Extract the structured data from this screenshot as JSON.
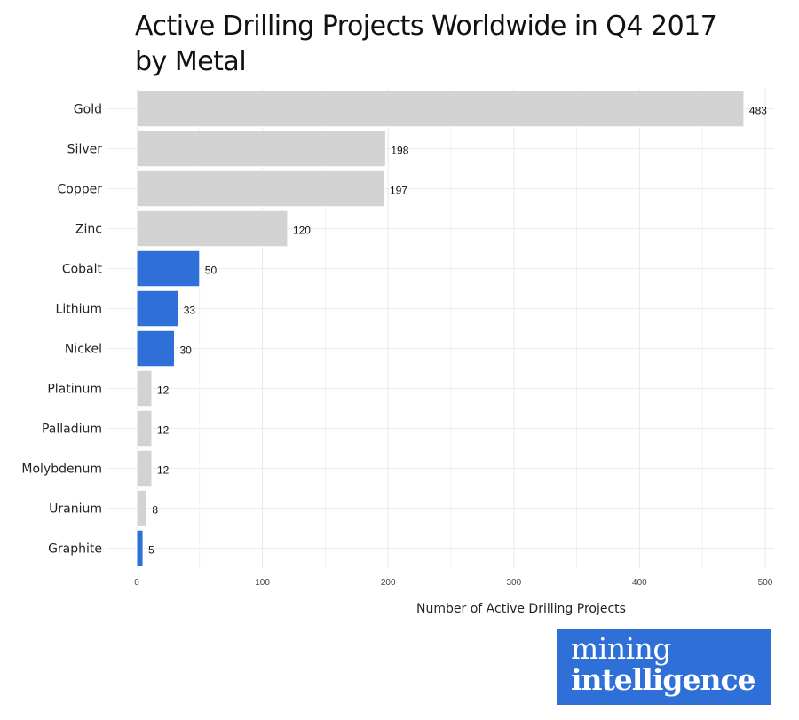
{
  "chart_data": {
    "type": "bar",
    "orientation": "horizontal",
    "title": "Active Drilling Projects Worldwide in Q4 2017 by Metal",
    "title_lines": [
      "Active Drilling Projects Worldwide in Q4 2017",
      "by Metal"
    ],
    "xlabel": "Number of Active Drilling Projects",
    "ylabel": "",
    "xlim": [
      0,
      500
    ],
    "xticks": [
      0,
      100,
      200,
      300,
      400,
      500
    ],
    "xtick_labels": [
      "0",
      "100",
      "200",
      "300",
      "400",
      "500"
    ],
    "grid": true,
    "categories": [
      "Gold",
      "Silver",
      "Copper",
      "Zinc",
      "Cobalt",
      "Lithium",
      "Nickel",
      "Platinum",
      "Palladium",
      "Molybdenum",
      "Uranium",
      "Graphite"
    ],
    "values": [
      483,
      198,
      197,
      120,
      50,
      33,
      30,
      12,
      12,
      12,
      8,
      5
    ],
    "data_labels": [
      "483",
      "198",
      "197",
      "120",
      "50",
      "33",
      "30",
      "12",
      "12",
      "12",
      "8",
      "5"
    ],
    "highlighted": [
      false,
      false,
      false,
      false,
      true,
      true,
      true,
      false,
      false,
      false,
      false,
      true
    ],
    "colors": {
      "default": "#d3d3d3",
      "highlight": "#2e6fd8",
      "grid": "#ebebeb"
    }
  },
  "logo": {
    "line1": "mining",
    "line2": "intelligence",
    "color": "#2e6fd8"
  }
}
